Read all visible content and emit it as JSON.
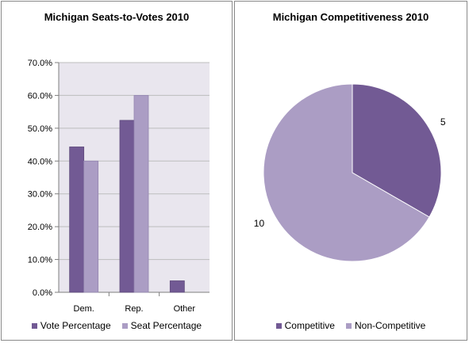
{
  "chart_data": [
    {
      "type": "bar",
      "title": "Michigan Seats-to-Votes 2010",
      "categories": [
        "Dem.",
        "Rep.",
        "Other"
      ],
      "series": [
        {
          "name": "Vote Percentage",
          "values": [
            44.3,
            52.4,
            3.5
          ],
          "color": "#725a94"
        },
        {
          "name": "Seat Percentage",
          "values": [
            40.0,
            60.0,
            0.0
          ],
          "color": "#ab9dc4"
        }
      ],
      "ylim": [
        0,
        70
      ],
      "yticks": [
        "0.0%",
        "10.0%",
        "20.0%",
        "30.0%",
        "40.0%",
        "50.0%",
        "60.0%",
        "70.0%"
      ],
      "grid": true,
      "legend": "bottom",
      "plot_background": "#e9e6ee"
    },
    {
      "type": "pie",
      "title": "Michigan Competitiveness 2010",
      "labels": [
        "Competitive",
        "Non-Competitive"
      ],
      "values": [
        5,
        10
      ],
      "data_labels": [
        "5",
        "10"
      ],
      "colors": [
        "#725a94",
        "#ab9dc4"
      ],
      "legend": "bottom"
    }
  ]
}
